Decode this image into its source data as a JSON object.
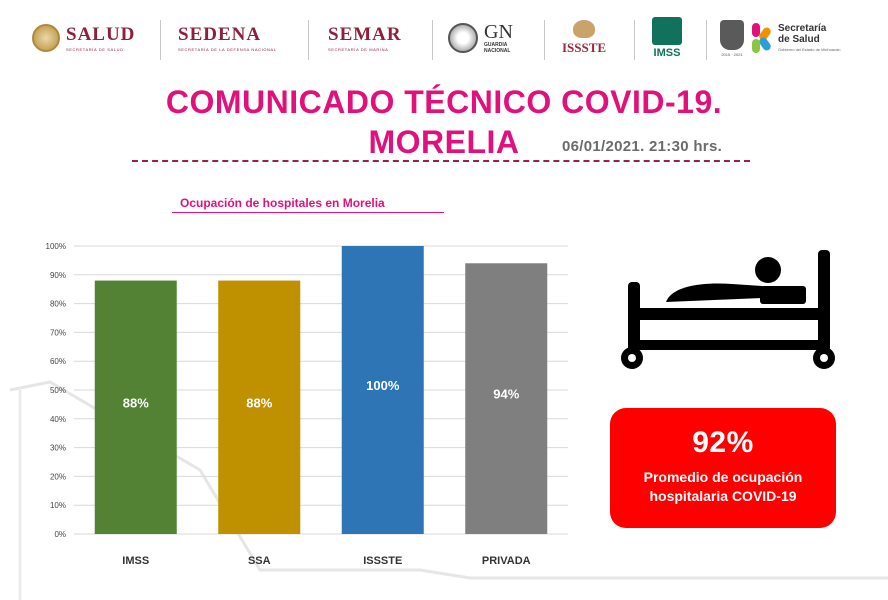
{
  "logos": {
    "salud": {
      "name": "SALUD",
      "subtitle": "SECRETARÍA DE SALUD"
    },
    "sedena": {
      "name": "SEDENA",
      "subtitle": "SECRETARÍA DE LA DEFENSA NACIONAL"
    },
    "semar": {
      "name": "SEMAR",
      "subtitle": "SECRETARÍA DE MARINA"
    },
    "gn": {
      "name": "GN",
      "subtitle_1": "GUARDIA",
      "subtitle_2": "NACIONAL"
    },
    "issste": {
      "name": "ISSSTE"
    },
    "imss": {
      "name": "IMSS"
    },
    "michoacan": {
      "subtitle": "2015 · 2021"
    },
    "secretaria": {
      "line_1": "Secretaría",
      "line_2": "de Salud",
      "subtitle": "Gobierno del Estado de Michoacán"
    },
    "colors": {
      "gobierno": "#8f1f3c",
      "imss": "#12715c",
      "issste": "#9b2742"
    }
  },
  "header": {
    "title_line_1": "COMUNICADO TÉCNICO COVID-19.",
    "title_line_2": "MORELIA",
    "datetime": "06/01/2021.  21:30 hrs.",
    "title_color": "#e0117b",
    "rule_color": "#9c1f44"
  },
  "chart_data": {
    "type": "bar",
    "title": "Ocupación de hospitales en Morelia",
    "categories": [
      "IMSS",
      "SSA",
      "ISSSTE",
      "PRIVADA"
    ],
    "values": [
      88,
      88,
      100,
      94
    ],
    "data_labels": [
      "88%",
      "88%",
      "100%",
      "94%"
    ],
    "colors": [
      "#548235",
      "#bf9000",
      "#2e75b6",
      "#7f7f7f"
    ],
    "ylim": [
      0,
      100
    ],
    "yticks": [
      0,
      10,
      20,
      30,
      40,
      50,
      60,
      70,
      80,
      90,
      100
    ],
    "ytick_labels": [
      "0%",
      "10%",
      "20%",
      "30%",
      "40%",
      "50%",
      "60%",
      "70%",
      "80%",
      "90%",
      "100%"
    ],
    "grid": true,
    "xlabel": "",
    "ylabel": ""
  },
  "summary": {
    "icon": "hospital-bed-icon",
    "value": "92%",
    "label": "Promedio de ocupación hospitalaria COVID-19",
    "box_color": "#ff0000"
  }
}
